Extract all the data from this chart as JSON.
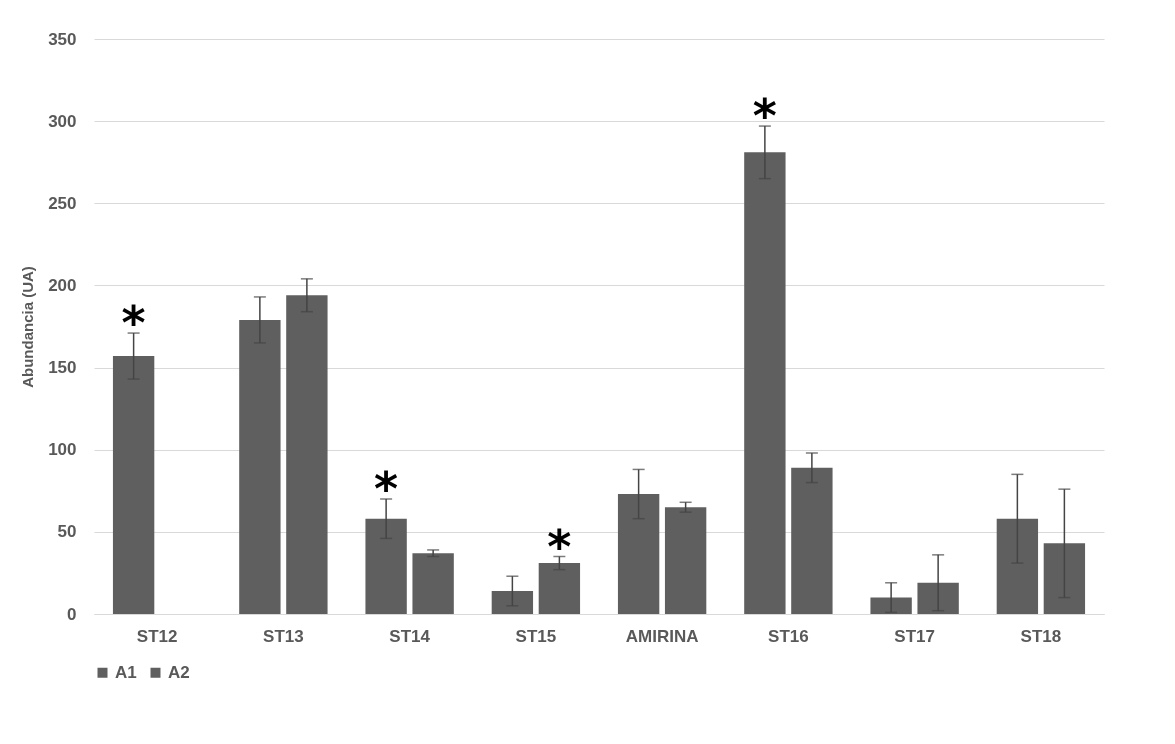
{
  "chart_data": {
    "type": "bar",
    "ylabel": "Abundancia (UA)",
    "categories": [
      "ST12",
      "ST13",
      "ST14",
      "ST15",
      "AMIRINA",
      "ST16",
      "ST17",
      "ST18"
    ],
    "series": [
      {
        "name": "A1",
        "color": "#5f5f5f",
        "values": [
          157,
          179,
          58,
          14,
          73,
          281,
          10,
          58
        ],
        "errors": [
          14,
          14,
          12,
          9,
          15,
          16,
          9,
          27
        ]
      },
      {
        "name": "A2",
        "color": "#5f5f5f",
        "values": [
          0,
          194,
          37,
          31,
          65,
          89,
          19,
          43
        ],
        "errors": [
          null,
          10,
          2,
          4,
          3,
          9,
          17,
          33
        ]
      }
    ],
    "ylim": [
      0,
      350
    ],
    "yticks": [
      0,
      50,
      100,
      150,
      200,
      250,
      300,
      350
    ],
    "grid": "y",
    "legend": "bottom",
    "annotations": [
      {
        "text": "*",
        "x": "ST12",
        "y": 157
      },
      {
        "text": "*",
        "x": "ST14",
        "y": 58
      },
      {
        "text": "*",
        "x": "ST15",
        "y": 31
      },
      {
        "text": "*",
        "x": "ST16",
        "y": 281
      }
    ]
  }
}
